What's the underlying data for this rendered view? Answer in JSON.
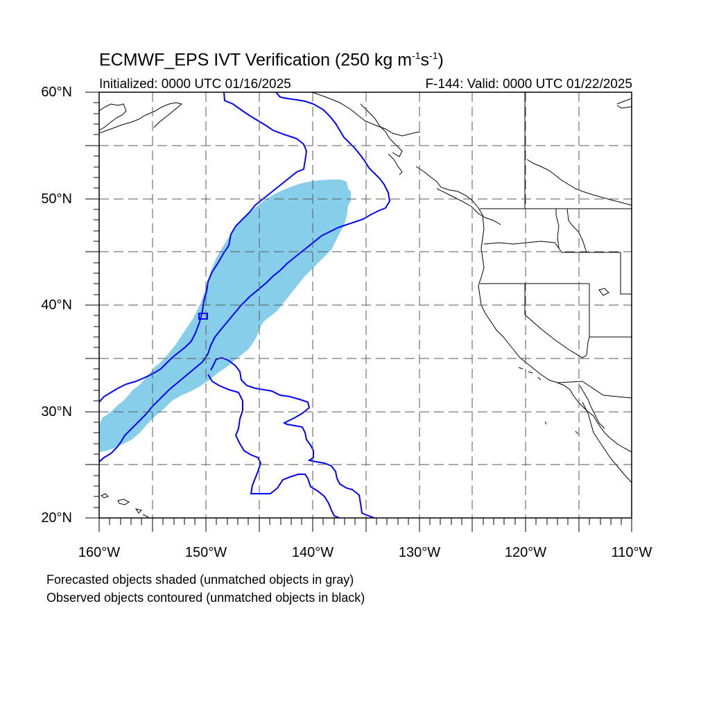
{
  "title": {
    "main": "ECMWF_EPS IVT Verification (250 kg m",
    "exp1": "-1",
    "mid": "s",
    "exp2": "-1",
    "end": ")"
  },
  "initialized": "Initialized: 0000 UTC 01/16/2025",
  "valid": "F-144: Valid: 0000 UTC 01/22/2025",
  "axes": {
    "lat_labels": [
      "60°N",
      "50°N",
      "40°N",
      "30°N",
      "20°N"
    ],
    "lon_labels": [
      "160°W",
      "150°W",
      "140°W",
      "130°W",
      "120°W",
      "110°W"
    ],
    "lat_range": [
      20,
      60
    ],
    "lon_range": [
      -160,
      -110
    ],
    "grid": "dashed every 5°"
  },
  "legend": {
    "line1": "Forecasted objects shaded (unmatched objects in gray)",
    "line2": "Observed objects contoured (unmatched objects in black)"
  },
  "colors": {
    "forecast_fill": "#87ceeb",
    "observed_contour": "#0000ff",
    "coastline": "#000000",
    "grid": "#555555"
  }
}
